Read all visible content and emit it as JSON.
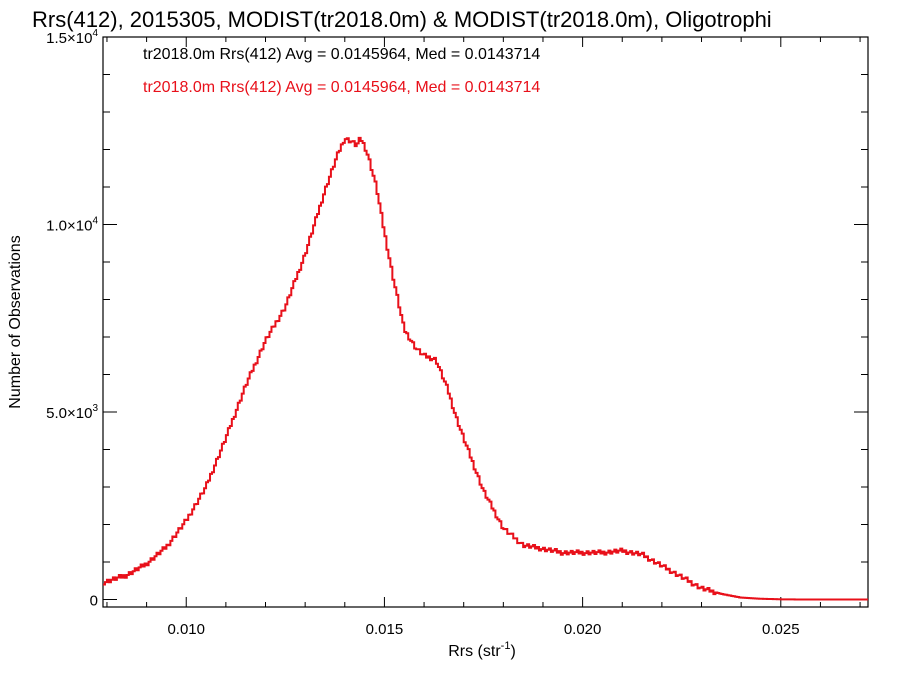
{
  "chart_data": {
    "type": "line",
    "step": true,
    "title": "Rrs(412), 2015305, MODIST(tr2018.0m) & MODIST(tr2018.0m), Oligotrophi",
    "xlabel": "Rrs (str",
    "xlabel_sup": "-1",
    "xlabel_suffix": ")",
    "ylabel": "Number of Observations",
    "xlim": [
      0.0079,
      0.0272
    ],
    "ylim": [
      -200,
      15000
    ],
    "xticks": [
      {
        "v": 0.01,
        "label": "0.010"
      },
      {
        "v": 0.015,
        "label": "0.015"
      },
      {
        "v": 0.02,
        "label": "0.020"
      },
      {
        "v": 0.025,
        "label": "0.025"
      }
    ],
    "yticks": [
      {
        "v": 0,
        "label": "0",
        "sup": ""
      },
      {
        "v": 5000,
        "label": "5.0×10",
        "sup": "3"
      },
      {
        "v": 10000,
        "label": "1.0×10",
        "sup": "4"
      },
      {
        "v": 15000,
        "label": "1.5×10",
        "sup": "4"
      }
    ],
    "grid": false,
    "annotations": [
      {
        "text": "tr2018.0m Rrs(412) Avg = 0.0145964, Med = 0.0143714",
        "color": "#000000"
      },
      {
        "text": "tr2018.0m Rrs(412) Avg = 0.0145964, Med = 0.0143714",
        "color": "#e8101a"
      }
    ],
    "series": [
      {
        "color": "#e8101a",
        "x": [
          0.0079,
          0.0085,
          0.009,
          0.0095,
          0.01,
          0.0105,
          0.011,
          0.0115,
          0.012,
          0.0125,
          0.013,
          0.0135,
          0.0138,
          0.014,
          0.0142,
          0.0143,
          0.0144,
          0.0145,
          0.0146,
          0.0148,
          0.015,
          0.0152,
          0.0155,
          0.0158,
          0.016,
          0.0163,
          0.0166,
          0.0168,
          0.017,
          0.0175,
          0.018,
          0.0185,
          0.019,
          0.0195,
          0.02,
          0.0205,
          0.021,
          0.0215,
          0.022,
          0.0225,
          0.023,
          0.0235,
          0.024,
          0.0245,
          0.025,
          0.0255,
          0.026,
          0.0265,
          0.0272
        ],
        "y": [
          450,
          650,
          950,
          1400,
          2100,
          3000,
          4300,
          5700,
          6900,
          7800,
          9200,
          10900,
          11800,
          12300,
          12200,
          12100,
          12300,
          12100,
          11800,
          11000,
          9800,
          8700,
          7200,
          6700,
          6500,
          6400,
          5600,
          4900,
          4300,
          2900,
          1900,
          1450,
          1350,
          1250,
          1250,
          1250,
          1300,
          1200,
          900,
          600,
          300,
          150,
          50,
          20,
          5,
          0,
          0,
          0,
          0
        ]
      }
    ]
  }
}
